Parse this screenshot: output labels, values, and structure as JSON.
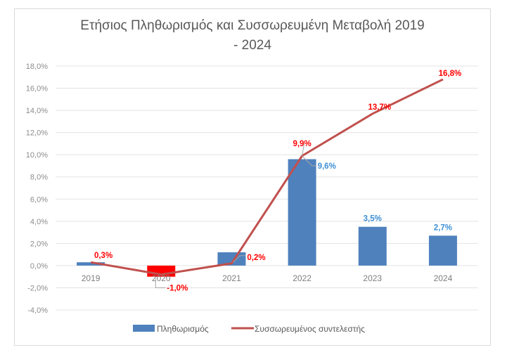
{
  "chart_data": {
    "type": "bar",
    "title_line1": "Ετήσιος Πληθωρισμός και Συσσωρευμένη Μεταβολή 2019",
    "title_line2": "- 2024",
    "categories": [
      "2019",
      "2020",
      "2021",
      "2022",
      "2023",
      "2024"
    ],
    "ylim": [
      -4,
      18
    ],
    "yticks": [
      -4,
      -2,
      0,
      2,
      4,
      6,
      8,
      10,
      12,
      14,
      16,
      18
    ],
    "ytick_labels": [
      "-4,0%",
      "-2,0%",
      "0,0%",
      "2,0%",
      "4,0%",
      "6,0%",
      "8,0%",
      "10,0%",
      "12,0%",
      "14,0%",
      "16,0%",
      "18,0%"
    ],
    "grid": true,
    "legend_position": "bottom",
    "series": [
      {
        "name": "Πληθωρισμός",
        "type": "bar",
        "color": "#4f81bd",
        "values": [
          0.3,
          -1.0,
          1.2,
          9.6,
          3.5,
          2.7
        ],
        "point_colors": [
          "#4f81bd",
          "#ff0000",
          "#4f81bd",
          "#4f81bd",
          "#4f81bd",
          "#4f81bd"
        ],
        "labels": [
          "",
          "-1,0%",
          "",
          "9,6%",
          "3,5%",
          "2,7%"
        ]
      },
      {
        "name": "Συσσωρευμένος συντελεστής",
        "type": "line",
        "color": "#c0504d",
        "values": [
          0.3,
          -0.8,
          0.2,
          9.9,
          13.7,
          16.8
        ],
        "labels": [
          "0,3%",
          "",
          "0,2%",
          "9,9%",
          "13,7%",
          "16,8%"
        ]
      }
    ]
  }
}
